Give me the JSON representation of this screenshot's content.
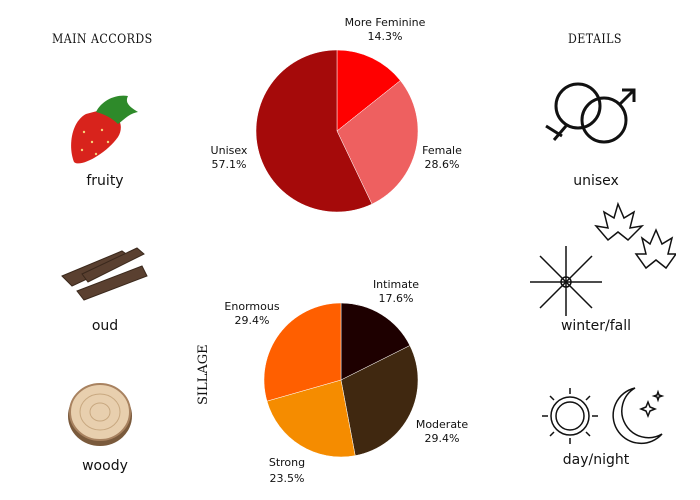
{
  "main_accords": {
    "title": "MAIN ACCORDS",
    "items": [
      {
        "label": "fruity",
        "icon": "strawberry-icon"
      },
      {
        "label": "oud",
        "icon": "oud-wood-icon"
      },
      {
        "label": "woody",
        "icon": "wood-slice-icon"
      }
    ]
  },
  "details": {
    "title": "DETAILS",
    "items": [
      {
        "label": "unisex",
        "icon": "gender-symbols-icon"
      },
      {
        "label": "winter/fall",
        "icon": "snowflake-leaves-icon"
      },
      {
        "label": "day/night",
        "icon": "sun-moon-icon"
      }
    ]
  },
  "chart_data": [
    {
      "type": "pie",
      "title": "",
      "start": "top",
      "direction": "clockwise",
      "slices": [
        {
          "name": "More Feminine",
          "value": 14.3,
          "label": "14.3%",
          "color": "#ff0000"
        },
        {
          "name": "Female",
          "value": 28.6,
          "label": "28.6%",
          "color": "#ee6060"
        },
        {
          "name": "Unisex",
          "value": 57.1,
          "label": "57.1%",
          "color": "#a50a0a"
        }
      ]
    },
    {
      "type": "pie",
      "title": "SILLAGE",
      "start": "top",
      "direction": "clockwise",
      "slices": [
        {
          "name": "Intimate",
          "value": 17.6,
          "label": "17.6%",
          "color": "#1e0000"
        },
        {
          "name": "Moderate",
          "value": 29.4,
          "label": "29.4%",
          "color": "#402810"
        },
        {
          "name": "Strong",
          "value": 23.5,
          "label": "23.5%",
          "color": "#f58c00"
        },
        {
          "name": "Enormous",
          "value": 29.4,
          "label": "29.4%",
          "color": "#ff5f00"
        }
      ]
    }
  ]
}
